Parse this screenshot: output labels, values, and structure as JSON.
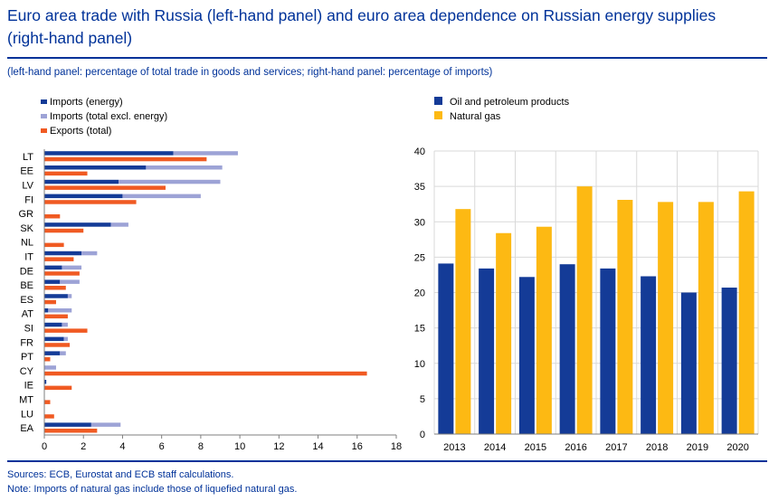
{
  "title": "Euro area trade with Russia (left-hand panel) and euro area dependence on Russian energy supplies (right-hand panel)",
  "subtitle": "(left-hand panel: percentage of total trade in goods and services; right-hand panel: percentage of imports)",
  "sources": "Sources: ECB, Eurostat and ECB staff calculations.",
  "note": "Note: Imports of natural gas include those of liquefied natural gas.",
  "colors": {
    "dark_blue": "#143B97",
    "light_blue": "#9DA3D6",
    "orange": "#F05A22",
    "yellow": "#FDB913",
    "text_blue": "#003299"
  },
  "chart_data": [
    {
      "type": "bar",
      "orientation": "horizontal",
      "categories": [
        "LT",
        "EE",
        "LV",
        "FI",
        "GR",
        "SK",
        "NL",
        "IT",
        "DE",
        "BE",
        "ES",
        "AT",
        "SI",
        "FR",
        "PT",
        "CY",
        "IE",
        "MT",
        "LU",
        "EA"
      ],
      "series": [
        {
          "name": "Imports (energy)",
          "color": "#143B97",
          "values": [
            6.6,
            5.2,
            3.8,
            4.0,
            0.0,
            3.4,
            0.0,
            1.9,
            0.9,
            0.8,
            1.2,
            0.2,
            0.9,
            1.0,
            0.8,
            0.0,
            0.1,
            0.0,
            0.0,
            2.4
          ]
        },
        {
          "name": "Imports (total excl. energy)",
          "color": "#9DA3D6",
          "values": [
            3.3,
            3.9,
            5.2,
            4.0,
            0.0,
            0.9,
            0.0,
            0.8,
            1.0,
            1.0,
            0.2,
            1.2,
            0.3,
            0.2,
            0.3,
            0.6,
            0.0,
            0.0,
            0.0,
            1.5
          ]
        },
        {
          "name": "Exports (total)",
          "color": "#F05A22",
          "values": [
            8.3,
            2.2,
            6.2,
            4.7,
            0.8,
            2.0,
            1.0,
            1.5,
            1.8,
            1.1,
            0.6,
            1.2,
            2.2,
            1.3,
            0.3,
            16.5,
            1.4,
            0.3,
            0.5,
            2.7
          ]
        }
      ],
      "xlim": [
        0,
        18
      ],
      "xticks": [
        "0",
        "2",
        "4",
        "6",
        "8",
        "10",
        "12",
        "14",
        "16",
        "18"
      ],
      "legend_position": "top-left",
      "grid": false
    },
    {
      "type": "bar",
      "categories": [
        "2013",
        "2014",
        "2015",
        "2016",
        "2017",
        "2018",
        "2019",
        "2020"
      ],
      "series": [
        {
          "name": "Oil and petroleum products",
          "color": "#143B97",
          "values": [
            24.1,
            23.4,
            22.2,
            24.0,
            23.4,
            22.3,
            20.0,
            20.7
          ]
        },
        {
          "name": "Natural gas",
          "color": "#FDB913",
          "values": [
            31.8,
            28.4,
            29.3,
            35.0,
            33.1,
            32.8,
            32.8,
            34.3
          ]
        }
      ],
      "ylim": [
        0,
        40
      ],
      "yticks": [
        "0",
        "5",
        "10",
        "15",
        "20",
        "25",
        "30",
        "35",
        "40"
      ],
      "legend_position": "top-left",
      "grid": true
    }
  ]
}
